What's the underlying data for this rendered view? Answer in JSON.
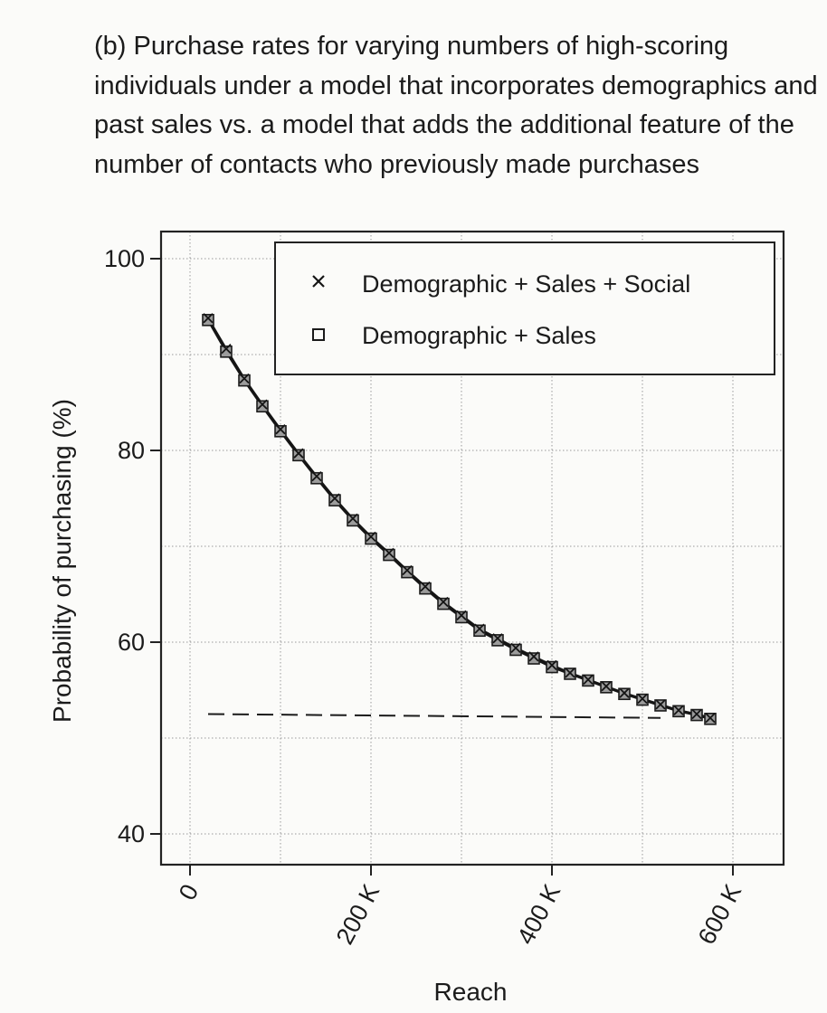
{
  "caption": "(b) Purchase rates for varying numbers of high-scoring individuals under a model that incorporates demographics and past sales vs. a model that adds the additional feature of the number of contacts who previously made purchases",
  "chart_data": {
    "type": "line",
    "title": "(b) Purchase rates for varying numbers of high-scoring individuals under a model that incorporates demographics and past sales vs. a model that adds the additional feature of the number of contacts who previously made purchases",
    "xlabel": "Reach",
    "ylabel": "Probability of purchasing (%)",
    "xlim": [
      -30000,
      655000
    ],
    "ylim": [
      39,
      102
    ],
    "x_ticks": [
      0,
      200000,
      400000,
      600000
    ],
    "x_tick_labels": [
      "0",
      "200 K",
      "400 K",
      "600 K"
    ],
    "y_ticks": [
      40,
      60,
      80,
      100
    ],
    "y_tick_labels": [
      "40",
      "60",
      "80",
      "100"
    ],
    "grid": true,
    "legend_position": "top-right",
    "x": [
      20000,
      40000,
      60000,
      80000,
      100000,
      120000,
      140000,
      160000,
      180000,
      200000,
      220000,
      240000,
      260000,
      280000,
      300000,
      320000,
      340000,
      360000,
      380000,
      400000,
      420000,
      440000,
      460000,
      480000,
      500000,
      520000,
      540000,
      560000,
      575000
    ],
    "series": [
      {
        "name": "Demographic + Sales + Social",
        "marker": "x",
        "values": [
          93.8,
          90.6,
          87.5,
          84.8,
          82.2,
          79.7,
          77.3,
          75.0,
          72.9,
          71.0,
          69.3,
          67.5,
          65.8,
          64.2,
          62.8,
          61.4,
          60.4,
          59.4,
          58.5,
          57.6,
          56.8,
          56.1,
          55.4,
          54.7,
          54.1,
          53.5,
          52.9,
          52.5,
          52.1
        ]
      },
      {
        "name": "Demographic + Sales",
        "marker": "square",
        "values": [
          93.6,
          90.3,
          87.3,
          84.6,
          82.0,
          79.5,
          77.1,
          74.8,
          72.7,
          70.8,
          69.1,
          67.3,
          65.6,
          64.0,
          62.6,
          61.2,
          60.2,
          59.2,
          58.3,
          57.4,
          56.7,
          56.0,
          55.3,
          54.6,
          54.0,
          53.4,
          52.8,
          52.4,
          52.0
        ]
      }
    ],
    "baseline": {
      "style": "dashed",
      "x": [
        20000,
        520000
      ],
      "y": [
        52.5,
        52.1
      ]
    }
  }
}
